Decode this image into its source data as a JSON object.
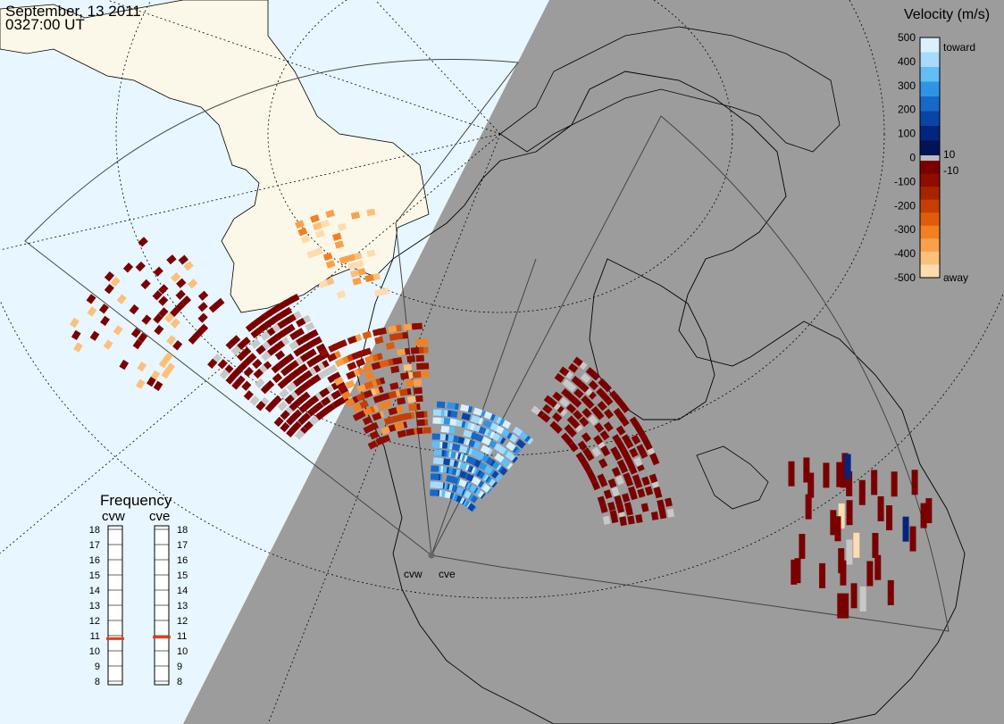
{
  "header": {
    "date": "September, 13 2011",
    "time": "0327:00 UT"
  },
  "colorbar": {
    "title": "Velocity (m/s)",
    "ticks": [
      "500",
      "400",
      "300",
      "200",
      "100",
      "0",
      "-100",
      "-200",
      "-300",
      "-400",
      "-500"
    ],
    "side_labels": [
      "toward",
      "10",
      "-10",
      "away"
    ],
    "toward_colors": [
      "#d9f0ff",
      "#a6dbff",
      "#63bdf7",
      "#2f94e6",
      "#1768c9",
      "#0a44a6",
      "#03257d",
      "#011455"
    ],
    "away_colors": [
      "#7a0000",
      "#8e0c00",
      "#a82400",
      "#c63e00",
      "#e15c0a",
      "#f28022",
      "#f9a04a",
      "#fcc07a",
      "#fddcb0"
    ]
  },
  "frequency_panel": {
    "title": "Frequency",
    "stations": [
      {
        "name": "cvw",
        "freq": 10.8
      },
      {
        "name": "cve",
        "freq": 10.9
      }
    ],
    "scale": [
      "18",
      "17",
      "16",
      "15",
      "14",
      "13",
      "12",
      "11",
      "10",
      "9",
      "8"
    ]
  },
  "radars": [
    {
      "name": "cvw"
    },
    {
      "name": "cve"
    }
  ],
  "map": {
    "day_color": "#e8f6ff",
    "land_day_color": "#fbf8e9",
    "night_color": "#9c9c9c"
  }
}
